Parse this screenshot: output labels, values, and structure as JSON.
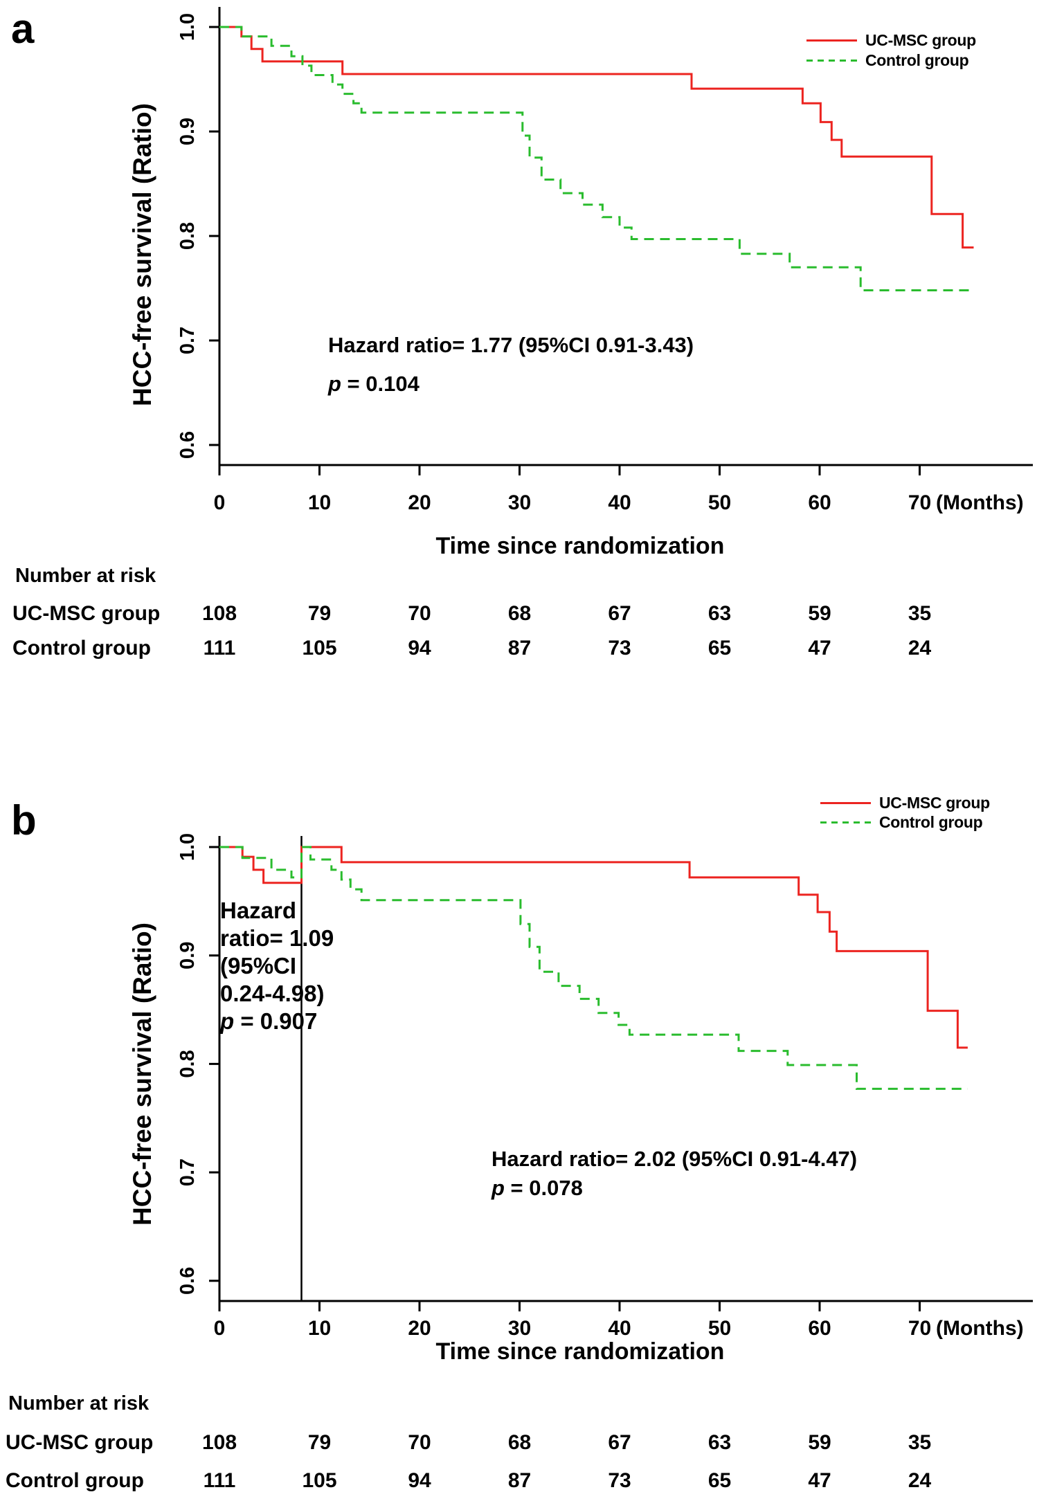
{
  "figure": {
    "background": "#ffffff",
    "text_color": "#000000",
    "red": "#ec2420",
    "green": "#2abc2e"
  },
  "chart_data": [
    {
      "type": "line",
      "km_step": true,
      "panel_label": "a",
      "xlabel": "Time since randomization",
      "x_unit_label": "(Months)",
      "ylabel": "HCC-free survival (Ratio)",
      "x_ticks": [
        "0",
        "10",
        "20",
        "30",
        "40",
        "50",
        "60",
        "70"
      ],
      "y_ticks": [
        "1.0",
        "0.9",
        "0.8",
        "0.7",
        "0.6"
      ],
      "xlim": [
        0,
        81
      ],
      "ylim": [
        0.58,
        1.005
      ],
      "grid": false,
      "legend_position": "top-right",
      "legend": [
        {
          "name": "UC-MSC group",
          "color": "#ec2420",
          "line": "solid"
        },
        {
          "name": "Control group",
          "color": "#2abc2e",
          "line": "dashed"
        }
      ],
      "series": [
        {
          "name": "UC-MSC group",
          "color": "#ec2420",
          "line": "solid",
          "end_month": 75.4,
          "steps": [
            [
              0,
              1.0
            ],
            [
              2.2,
              0.991
            ],
            [
              3.2,
              0.979
            ],
            [
              4.3,
              0.967
            ],
            [
              12.3,
              0.955
            ],
            [
              47.2,
              0.941
            ],
            [
              58.3,
              0.927
            ],
            [
              60.1,
              0.909
            ],
            [
              61.2,
              0.892
            ],
            [
              62.2,
              0.876
            ],
            [
              71.2,
              0.821
            ],
            [
              74.3,
              0.789
            ]
          ]
        },
        {
          "name": "Control group",
          "color": "#2abc2e",
          "line": "dashed",
          "end_month": 75.4,
          "steps": [
            [
              0,
              1.0
            ],
            [
              2.2,
              0.991
            ],
            [
              5.2,
              0.982
            ],
            [
              7.2,
              0.972
            ],
            [
              8.3,
              0.963
            ],
            [
              9.2,
              0.954
            ],
            [
              11.3,
              0.945
            ],
            [
              12.3,
              0.936
            ],
            [
              13.4,
              0.927
            ],
            [
              14.2,
              0.918
            ],
            [
              30.3,
              0.896
            ],
            [
              31.0,
              0.875
            ],
            [
              32.2,
              0.854
            ],
            [
              34.1,
              0.841
            ],
            [
              36.3,
              0.83
            ],
            [
              38.3,
              0.818
            ],
            [
              40.0,
              0.808
            ],
            [
              41.2,
              0.797
            ],
            [
              52.0,
              0.783
            ],
            [
              57.0,
              0.77
            ],
            [
              64.1,
              0.748
            ]
          ]
        }
      ],
      "annotations": [
        {
          "lines": [
            [
              {
                "t": "Hazard ratio= 1.77 (95%CI 0.91-3.43)"
              }
            ],
            [
              {
                "t": "p",
                "i": true
              },
              {
                "t": " = 0.104"
              }
            ]
          ]
        }
      ],
      "number_at_risk": {
        "title": "Number at risk",
        "rows": [
          {
            "label": "UC-MSC group",
            "values": [
              "108",
              "79",
              "70",
              "68",
              "67",
              "63",
              "59",
              "35"
            ]
          },
          {
            "label": "Control group",
            "values": [
              "111",
              "105",
              "94",
              "87",
              "73",
              "65",
              "47",
              "24"
            ]
          }
        ]
      }
    },
    {
      "type": "line",
      "km_step": true,
      "panel_label": "b",
      "xlabel": "Time since randomization",
      "x_unit_label": "(Months)",
      "ylabel": "HCC-free survival (Ratio)",
      "x_ticks": [
        "0",
        "10",
        "20",
        "30",
        "40",
        "50",
        "60",
        "70"
      ],
      "y_ticks": [
        "1.0",
        "0.9",
        "0.8",
        "0.7",
        "0.6"
      ],
      "xlim": [
        0,
        81
      ],
      "ylim": [
        0.58,
        1.005
      ],
      "grid": false,
      "vline_month": 8.2,
      "legend_position": "top-right",
      "legend": [
        {
          "name": "UC-MSC group",
          "color": "#ec2420",
          "line": "solid"
        },
        {
          "name": "Control group",
          "color": "#2abc2e",
          "line": "dashed"
        }
      ],
      "series": [
        {
          "name": "UC-MSC group",
          "color": "#ec2420",
          "line": "solid",
          "end_month": 74.8,
          "steps": [
            [
              0,
              1.0
            ],
            [
              2.3,
              0.991
            ],
            [
              3.4,
              0.979
            ],
            [
              4.4,
              0.967
            ],
            [
              8.2,
              1.0
            ],
            [
              12.2,
              0.986
            ],
            [
              47.0,
              0.972
            ],
            [
              57.9,
              0.956
            ],
            [
              59.8,
              0.94
            ],
            [
              61.0,
              0.922
            ],
            [
              61.7,
              0.904
            ],
            [
              70.8,
              0.849
            ],
            [
              73.8,
              0.815
            ]
          ]
        },
        {
          "name": "Control group",
          "color": "#2abc2e",
          "line": "dashed",
          "end_month": 74.8,
          "steps": [
            [
              0,
              1.0
            ],
            [
              2.3,
              0.99
            ],
            [
              5.2,
              0.979
            ],
            [
              7.2,
              0.972
            ],
            [
              8.2,
              1.0
            ],
            [
              9.1,
              0.9885
            ],
            [
              11.2,
              0.979
            ],
            [
              12.2,
              0.97
            ],
            [
              13.1,
              0.961
            ],
            [
              14.2,
              0.951
            ],
            [
              30.1,
              0.929
            ],
            [
              31.0,
              0.908
            ],
            [
              32.0,
              0.885
            ],
            [
              33.9,
              0.872
            ],
            [
              36.0,
              0.86
            ],
            [
              37.9,
              0.847
            ],
            [
              39.9,
              0.836
            ],
            [
              41.0,
              0.827
            ],
            [
              51.9,
              0.812
            ],
            [
              56.8,
              0.799
            ],
            [
              63.7,
              0.777
            ]
          ]
        }
      ],
      "annotations": [
        {
          "lines": [
            [
              {
                "t": "Hazard"
              }
            ],
            [
              {
                "t": "ratio= 1.09"
              }
            ],
            [
              {
                "t": "(95%CI"
              }
            ],
            [
              {
                "t": "0.24-4.98)"
              }
            ],
            [
              {
                "t": "p",
                "i": true
              },
              {
                "t": " = 0.907"
              }
            ]
          ]
        },
        {
          "lines": [
            [
              {
                "t": "Hazard ratio= 2.02 (95%CI 0.91-4.47)"
              }
            ],
            [
              {
                "t": "p",
                "i": true
              },
              {
                "t": " = 0.078"
              }
            ]
          ]
        }
      ],
      "number_at_risk": {
        "title": "Number at risk",
        "rows": [
          {
            "label": "UC-MSC group",
            "values": [
              "108",
              "79",
              "70",
              "68",
              "67",
              "63",
              "59",
              "35"
            ]
          },
          {
            "label": "Control group",
            "values": [
              "111",
              "105",
              "94",
              "87",
              "73",
              "65",
              "47",
              "24"
            ]
          }
        ]
      }
    }
  ]
}
